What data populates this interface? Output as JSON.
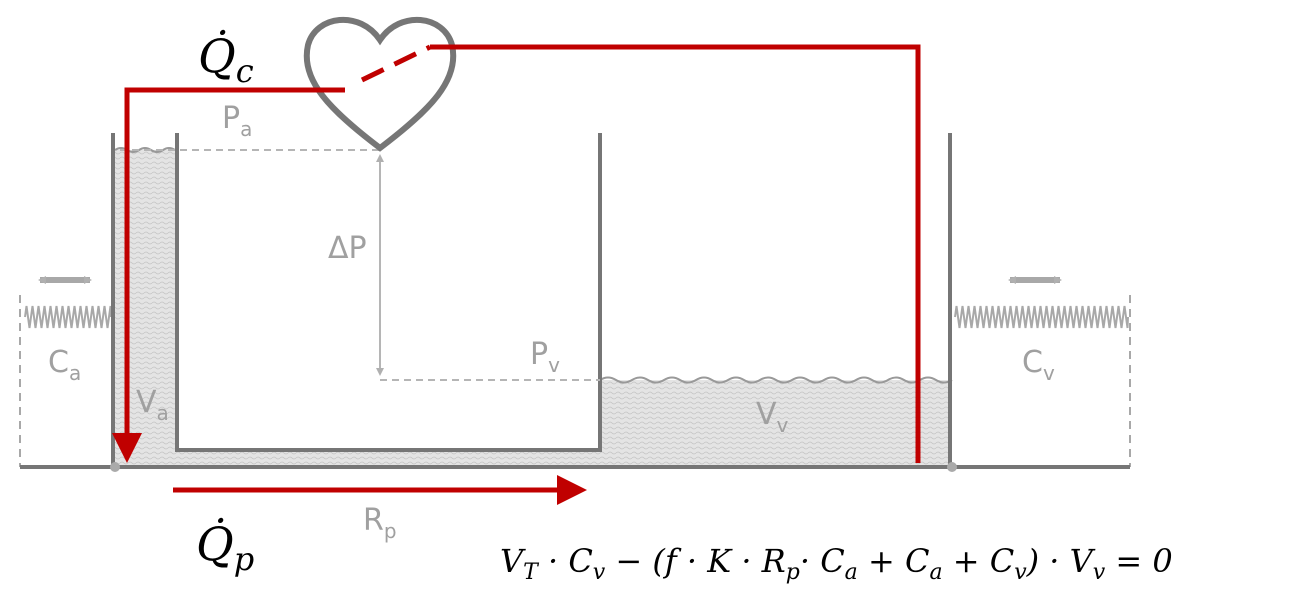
{
  "labels": {
    "q_c": {
      "text": "Q̇",
      "sub": "c"
    },
    "p_a": {
      "text": "P",
      "sub": "a"
    },
    "delta_p": {
      "text": "ΔP"
    },
    "p_v": {
      "text": "P",
      "sub": "v"
    },
    "c_a": {
      "text": "C",
      "sub": "a"
    },
    "c_v": {
      "text": "C",
      "sub": "v"
    },
    "v_a": {
      "text": "V",
      "sub": "a"
    },
    "v_v": {
      "text": "V",
      "sub": "v"
    },
    "q_p": {
      "text": "Q̇",
      "sub": "p"
    },
    "r_p": {
      "text": "R",
      "sub": "p"
    }
  },
  "equation": {
    "parts": [
      {
        "text": "V",
        "sub": "T"
      },
      {
        "text": " · C",
        "sub": "v"
      },
      {
        "text": " − (f · K · R",
        "sub": "p"
      },
      {
        "text": "· C",
        "sub": "a"
      },
      {
        "text": " + C",
        "sub": "a"
      },
      {
        "text": " + C",
        "sub": "v"
      },
      {
        "text": ") · V",
        "sub": "v"
      },
      {
        "text": " = 0"
      }
    ]
  }
}
